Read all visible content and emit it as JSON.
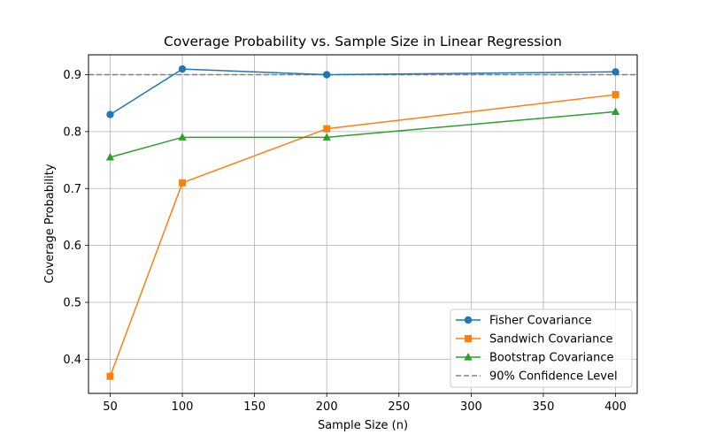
{
  "chart_data": {
    "type": "line",
    "title": "Coverage Probability vs. Sample Size in Linear Regression",
    "xlabel": "Sample Size (n)",
    "ylabel": "Coverage Probability",
    "xlim": [
      35,
      415
    ],
    "ylim": [
      0.34,
      0.935
    ],
    "xticks": [
      50,
      100,
      150,
      200,
      250,
      300,
      350,
      400
    ],
    "yticks": [
      0.4,
      0.5,
      0.6,
      0.7,
      0.8,
      0.9
    ],
    "grid": true,
    "legend_position": "lower-right",
    "x": [
      50,
      100,
      200,
      400
    ],
    "series": [
      {
        "name": "Fisher Covariance",
        "values": [
          0.83,
          0.91,
          0.9,
          0.905
        ],
        "color": "#1f77b4",
        "marker": "circle"
      },
      {
        "name": "Sandwich Covariance",
        "values": [
          0.37,
          0.71,
          0.805,
          0.865
        ],
        "color": "#ff7f0e",
        "marker": "square"
      },
      {
        "name": "Bootstrap Covariance",
        "values": [
          0.755,
          0.79,
          0.79,
          0.835
        ],
        "color": "#2ca02c",
        "marker": "triangle"
      }
    ],
    "reference_line": {
      "name": "90% Confidence Level",
      "y": 0.9,
      "color": "#808080",
      "style": "dashed"
    }
  }
}
